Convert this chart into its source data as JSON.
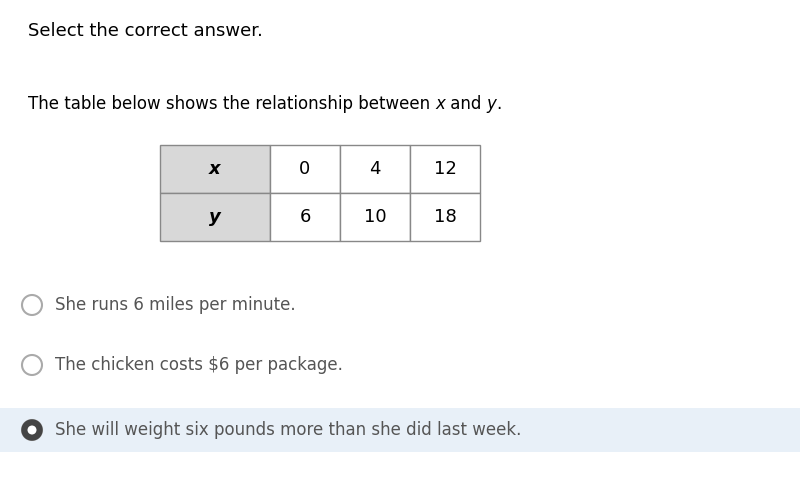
{
  "title_top": "Select the correct answer.",
  "subtitle_parts": [
    {
      "text": "The table below shows the relationship between ",
      "italic": false
    },
    {
      "text": "x",
      "italic": true
    },
    {
      "text": " and ",
      "italic": false
    },
    {
      "text": "y",
      "italic": true
    },
    {
      "text": ".",
      "italic": false
    }
  ],
  "table": {
    "headers": [
      "x",
      "0",
      "4",
      "12"
    ],
    "row2": [
      "y",
      "6",
      "10",
      "18"
    ],
    "header_bg": "#d8d8d8",
    "cell_bg": "#ffffff",
    "border_color": "#888888"
  },
  "options": [
    {
      "text": "She runs 6 miles per minute.",
      "selected": false
    },
    {
      "text": "The chicken costs $6 per package.",
      "selected": false
    },
    {
      "text": "She will weight six pounds more than she did last week.",
      "selected": true
    }
  ],
  "selected_bg": "#e8f0f8",
  "bg_color": "#ffffff",
  "font_size_title": 13,
  "font_size_subtitle": 12,
  "font_size_options": 12,
  "font_size_table": 13
}
